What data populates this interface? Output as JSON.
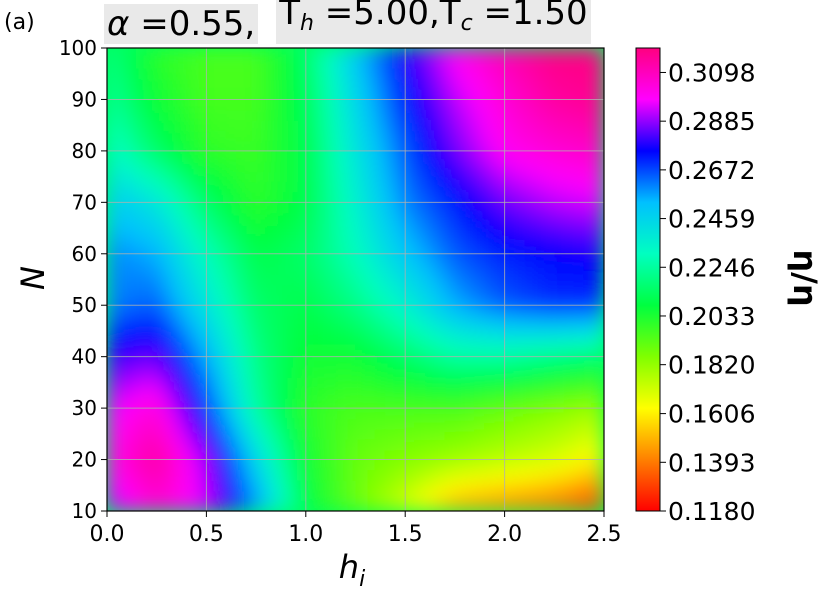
{
  "panel_label": "(a)",
  "title": {
    "alpha_symbol": "α",
    "alpha_value": " =0.55,",
    "th_main": "T",
    "th_sub": "h",
    "th_value": " =5.00,",
    "tc_main": "T",
    "tc_sub": "c",
    "tc_value": " =1.50"
  },
  "chart_data": {
    "type": "heatmap",
    "xlabel_main": "h",
    "xlabel_sub": "i",
    "ylabel": "N",
    "colorbar_label": "η/η",
    "xlim": [
      0.0,
      2.5
    ],
    "ylim": [
      10,
      100
    ],
    "x_ticks": [
      0.0,
      0.5,
      1.0,
      1.5,
      2.0,
      2.5
    ],
    "x_tick_labels": [
      "0.0",
      "0.5",
      "1.0",
      "1.5",
      "2.0",
      "2.5"
    ],
    "y_ticks": [
      10,
      20,
      30,
      40,
      50,
      60,
      70,
      80,
      90,
      100
    ],
    "y_tick_labels": [
      "10",
      "20",
      "30",
      "40",
      "50",
      "60",
      "70",
      "80",
      "90",
      "100"
    ],
    "grid": true,
    "colormap": "gist_rainbow",
    "clim": [
      0.118,
      0.3205
    ],
    "colorbar_ticks": [
      0.118,
      0.1393,
      0.1606,
      0.182,
      0.2033,
      0.2246,
      0.2459,
      0.2672,
      0.2885,
      0.3098
    ],
    "colorbar_tick_labels": [
      "0.1180",
      "0.1393",
      "0.1606",
      "0.1820",
      "0.2033",
      "0.2246",
      "0.2459",
      "0.2672",
      "0.2885",
      "0.3098"
    ],
    "colorbar_colors": [
      "#ff0000",
      "#ff8000",
      "#ffff00",
      "#80ff00",
      "#00ff40",
      "#00ffc0",
      "#00c0ff",
      "#0000ff",
      "#ff00ff",
      "#ff0080"
    ],
    "sample_x": [
      0.0,
      0.25,
      0.5,
      0.75,
      1.0,
      1.25,
      1.5,
      1.75,
      2.0,
      2.25,
      2.5
    ],
    "sample_y": [
      10,
      20,
      30,
      40,
      50,
      60,
      70,
      80,
      90,
      100
    ],
    "sample_values": [
      [
        0.29,
        0.305,
        0.295,
        0.26,
        0.21,
        0.19,
        0.17,
        0.145,
        0.14,
        0.135,
        0.125
      ],
      [
        0.3,
        0.315,
        0.29,
        0.245,
        0.205,
        0.19,
        0.185,
        0.18,
        0.175,
        0.17,
        0.16
      ],
      [
        0.295,
        0.305,
        0.27,
        0.225,
        0.2,
        0.195,
        0.195,
        0.195,
        0.19,
        0.185,
        0.18
      ],
      [
        0.28,
        0.285,
        0.255,
        0.22,
        0.205,
        0.205,
        0.215,
        0.225,
        0.225,
        0.22,
        0.215
      ],
      [
        0.26,
        0.265,
        0.24,
        0.215,
        0.21,
        0.22,
        0.235,
        0.255,
        0.265,
        0.27,
        0.27
      ],
      [
        0.26,
        0.255,
        0.23,
        0.21,
        0.215,
        0.23,
        0.25,
        0.265,
        0.272,
        0.275,
        0.278
      ],
      [
        0.25,
        0.24,
        0.215,
        0.2,
        0.21,
        0.235,
        0.26,
        0.272,
        0.285,
        0.292,
        0.295
      ],
      [
        0.235,
        0.215,
        0.2,
        0.198,
        0.21,
        0.24,
        0.265,
        0.285,
        0.3,
        0.305,
        0.308
      ],
      [
        0.225,
        0.205,
        0.196,
        0.196,
        0.212,
        0.245,
        0.272,
        0.292,
        0.305,
        0.315,
        0.318
      ],
      [
        0.22,
        0.2,
        0.195,
        0.195,
        0.215,
        0.25,
        0.278,
        0.3,
        0.312,
        0.32,
        0.32
      ]
    ]
  }
}
